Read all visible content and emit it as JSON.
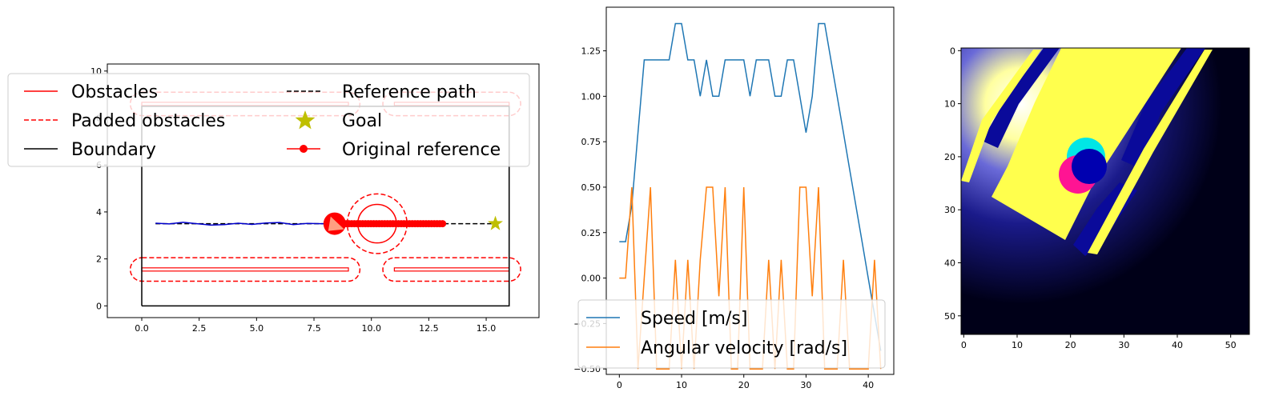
{
  "chart_data": [
    {
      "type": "scatter",
      "panel": "map",
      "xlim": [
        -1.5,
        17.3
      ],
      "ylim": [
        -0.5,
        10.3
      ],
      "xticks": [
        "0.0",
        "2.5",
        "5.0",
        "7.5",
        "10.0",
        "12.5",
        "15.0"
      ],
      "yticks": [
        "0",
        "2",
        "4",
        "6",
        "8",
        "10"
      ],
      "boundary": [
        [
          0,
          0
        ],
        [
          16,
          0
        ],
        [
          16,
          8.5
        ],
        [
          0,
          8.5
        ],
        [
          0,
          0
        ]
      ],
      "obstacles": [
        {
          "x0": 0,
          "x1": 9,
          "y": 1.55
        },
        {
          "x0": 11,
          "x1": 16,
          "y": 1.55
        },
        {
          "x0": 0,
          "x1": 9,
          "y": 8.6
        },
        {
          "x0": 11,
          "x1": 16,
          "y": 8.6
        }
      ],
      "padded_obstacles": [
        {
          "x0": 0,
          "x1": 9,
          "y": 1.55,
          "pad": 0.5
        },
        {
          "x0": 11,
          "x1": 16,
          "y": 1.55,
          "pad": 0.5
        },
        {
          "x0": 0,
          "x1": 9,
          "y": 8.6,
          "pad": 0.5
        },
        {
          "x0": 11,
          "x1": 16,
          "y": 8.6,
          "pad": 0.5
        }
      ],
      "dynamic_obstacle": {
        "x": 10.25,
        "y": 3.5,
        "r": 0.6,
        "padded_r": 1.3
      },
      "reference_path": {
        "x": [
          0.6,
          15.4
        ],
        "y": [
          3.5,
          3.5
        ]
      },
      "goal": {
        "x": 15.4,
        "y": 3.5
      },
      "robot": {
        "x": 8.4,
        "y": 3.5
      },
      "original_reference": {
        "x0": 8.9,
        "x1": 13.1,
        "y": 3.5,
        "count": 36
      },
      "trajectory": {
        "x": [
          0.6,
          1.2,
          1.8,
          2.4,
          3.0,
          3.6,
          4.2,
          4.8,
          5.4,
          6.0,
          6.6,
          7.2,
          7.8,
          8.3
        ],
        "y": [
          3.52,
          3.49,
          3.56,
          3.5,
          3.44,
          3.46,
          3.52,
          3.47,
          3.53,
          3.55,
          3.46,
          3.51,
          3.5,
          3.5
        ]
      },
      "legend": {
        "placement": "upper-center",
        "entries": [
          {
            "label": "Obstacles",
            "color": "#ff0000",
            "style": "solid"
          },
          {
            "label": "Reference path",
            "color": "#000000",
            "style": "dashed"
          },
          {
            "label": "Padded obstacles",
            "color": "#ff0000",
            "style": "dashed"
          },
          {
            "label": "Goal",
            "color": "#bfbf00",
            "style": "star"
          },
          {
            "label": "Boundary",
            "color": "#000000",
            "style": "solid"
          },
          {
            "label": "Original reference",
            "color": "#ff0000",
            "style": "dot-line"
          }
        ]
      }
    },
    {
      "type": "line",
      "panel": "velocities",
      "xlim": [
        -2.1,
        44.1
      ],
      "ylim": [
        -0.53,
        1.49
      ],
      "xticks": [
        "0",
        "10",
        "20",
        "30",
        "40"
      ],
      "yticks": [
        "-0.50",
        "-0.25",
        "0.00",
        "0.25",
        "0.50",
        "0.75",
        "1.00",
        "1.25"
      ],
      "series": [
        {
          "name": "Speed [m/s]",
          "color": "#1f77b4",
          "values": [
            0.2,
            0.2,
            0.4,
            0.8,
            1.2,
            1.2,
            1.2,
            1.2,
            1.2,
            1.4,
            1.4,
            1.2,
            1.2,
            1.0,
            1.2,
            1.0,
            1.0,
            1.2,
            1.2,
            1.2,
            1.2,
            1.0,
            1.2,
            1.2,
            1.2,
            1.0,
            1.0,
            1.2,
            1.2,
            1.0,
            0.8,
            1.0,
            1.4,
            1.4,
            1.2,
            1.0,
            0.8,
            0.6,
            0.4,
            0.2,
            0.0,
            -0.2,
            -0.4
          ]
        },
        {
          "name": "Angular velocity [rad/s]",
          "color": "#ff7f0e",
          "values": [
            0.0,
            0.0,
            0.5,
            -0.5,
            0.0,
            0.5,
            -0.5,
            -0.5,
            -0.5,
            0.1,
            -0.5,
            0.1,
            -0.5,
            0.1,
            0.5,
            0.5,
            -0.1,
            0.5,
            -0.5,
            -0.5,
            0.5,
            -0.5,
            -0.5,
            -0.5,
            0.1,
            -0.5,
            0.1,
            -0.5,
            -0.5,
            0.5,
            0.5,
            -0.1,
            0.5,
            -0.5,
            -0.5,
            -0.5,
            0.1,
            -0.5,
            -0.5,
            -0.5,
            -0.5,
            0.1,
            -0.5
          ]
        }
      ],
      "legend": {
        "placement": "lower-right"
      }
    },
    {
      "type": "heatmap",
      "panel": "image",
      "grid_size": 54,
      "xticks": [
        "0",
        "10",
        "20",
        "30",
        "40",
        "50"
      ],
      "yticks": [
        "0",
        "10",
        "20",
        "30",
        "40",
        "50"
      ],
      "colors": {
        "background_dark": "#00002e",
        "corridor": "#ffff4d",
        "walls": "#0000aa",
        "robot_cyan": "#00ffff",
        "robot_pink": "#ff1493"
      }
    }
  ]
}
